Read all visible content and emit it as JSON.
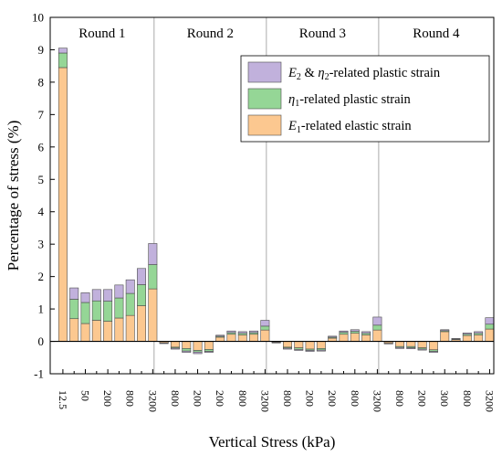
{
  "chart_data": {
    "type": "bar",
    "stacked": true,
    "xlabel": "Vertical Stress (kPa)",
    "ylabel": "Percentage of stress (%)",
    "ylim": [
      -1,
      10
    ],
    "yticks": [
      "-1",
      "0",
      "1",
      "2",
      "3",
      "4",
      "5",
      "6",
      "7",
      "8",
      "9",
      "10"
    ],
    "rounds": [
      "Round 1",
      "Round 2",
      "Round 3",
      "Round 4"
    ],
    "x_tick_labels": [
      "12.5",
      "50",
      "200",
      "800",
      "3200",
      "800",
      "200",
      "200",
      "800",
      "3200",
      "800",
      "200",
      "200",
      "800",
      "3200",
      "800",
      "200",
      "300",
      "800",
      "3200"
    ],
    "legend": {
      "position": "top-right",
      "entries": [
        {
          "id": "e2eta2",
          "base": "E",
          "base_sub": "2",
          "mid": " & ",
          "base2": "η",
          "base2_sub": "2",
          "rest": "-related plastic strain"
        },
        {
          "id": "eta1",
          "base": "η",
          "base_sub": "1",
          "rest": "-related plastic strain"
        },
        {
          "id": "e1",
          "base": "E",
          "base_sub": "1",
          "rest": "-related elastic strain"
        }
      ]
    },
    "colors": {
      "e1": "#fcc890",
      "eta1": "#95d696",
      "e2eta2": "#c1b1dc",
      "separator": "#aaaaaa"
    },
    "series": [
      {
        "name": "E1-related elastic strain",
        "key": "e1",
        "values": [
          8.45,
          0.7,
          0.55,
          0.65,
          0.62,
          0.72,
          0.8,
          1.1,
          1.62,
          -0.05,
          -0.18,
          -0.22,
          -0.28,
          -0.25,
          0.13,
          0.22,
          0.2,
          0.22,
          0.35,
          -0.03,
          -0.18,
          -0.2,
          -0.24,
          -0.22,
          0.1,
          0.22,
          0.25,
          0.2,
          0.35,
          -0.06,
          -0.16,
          -0.16,
          -0.2,
          -0.26,
          0.3,
          0.05,
          0.18,
          0.2,
          0.38
        ]
      },
      {
        "name": "η1-related plastic strain",
        "key": "eta1",
        "values": [
          0.45,
          0.6,
          0.65,
          0.6,
          0.62,
          0.62,
          0.68,
          0.65,
          0.75,
          0.0,
          -0.03,
          -0.08,
          -0.05,
          -0.06,
          0.03,
          0.05,
          0.05,
          0.05,
          0.12,
          0.0,
          -0.03,
          -0.05,
          -0.04,
          -0.05,
          0.03,
          0.06,
          0.06,
          0.05,
          0.15,
          0.0,
          -0.03,
          -0.04,
          -0.04,
          -0.05,
          0.03,
          0.02,
          0.04,
          0.05,
          0.15
        ]
      },
      {
        "name": "E2 & η2-related plastic strain",
        "key": "e2eta2",
        "values": [
          0.15,
          0.35,
          0.3,
          0.35,
          0.36,
          0.4,
          0.42,
          0.5,
          0.65,
          -0.02,
          -0.03,
          -0.04,
          -0.05,
          -0.03,
          0.03,
          0.05,
          0.05,
          0.05,
          0.18,
          -0.02,
          -0.03,
          -0.03,
          -0.03,
          -0.03,
          0.03,
          0.04,
          0.05,
          0.05,
          0.25,
          -0.02,
          -0.03,
          -0.03,
          -0.03,
          -0.03,
          0.03,
          0.02,
          0.04,
          0.05,
          0.2
        ]
      }
    ]
  }
}
